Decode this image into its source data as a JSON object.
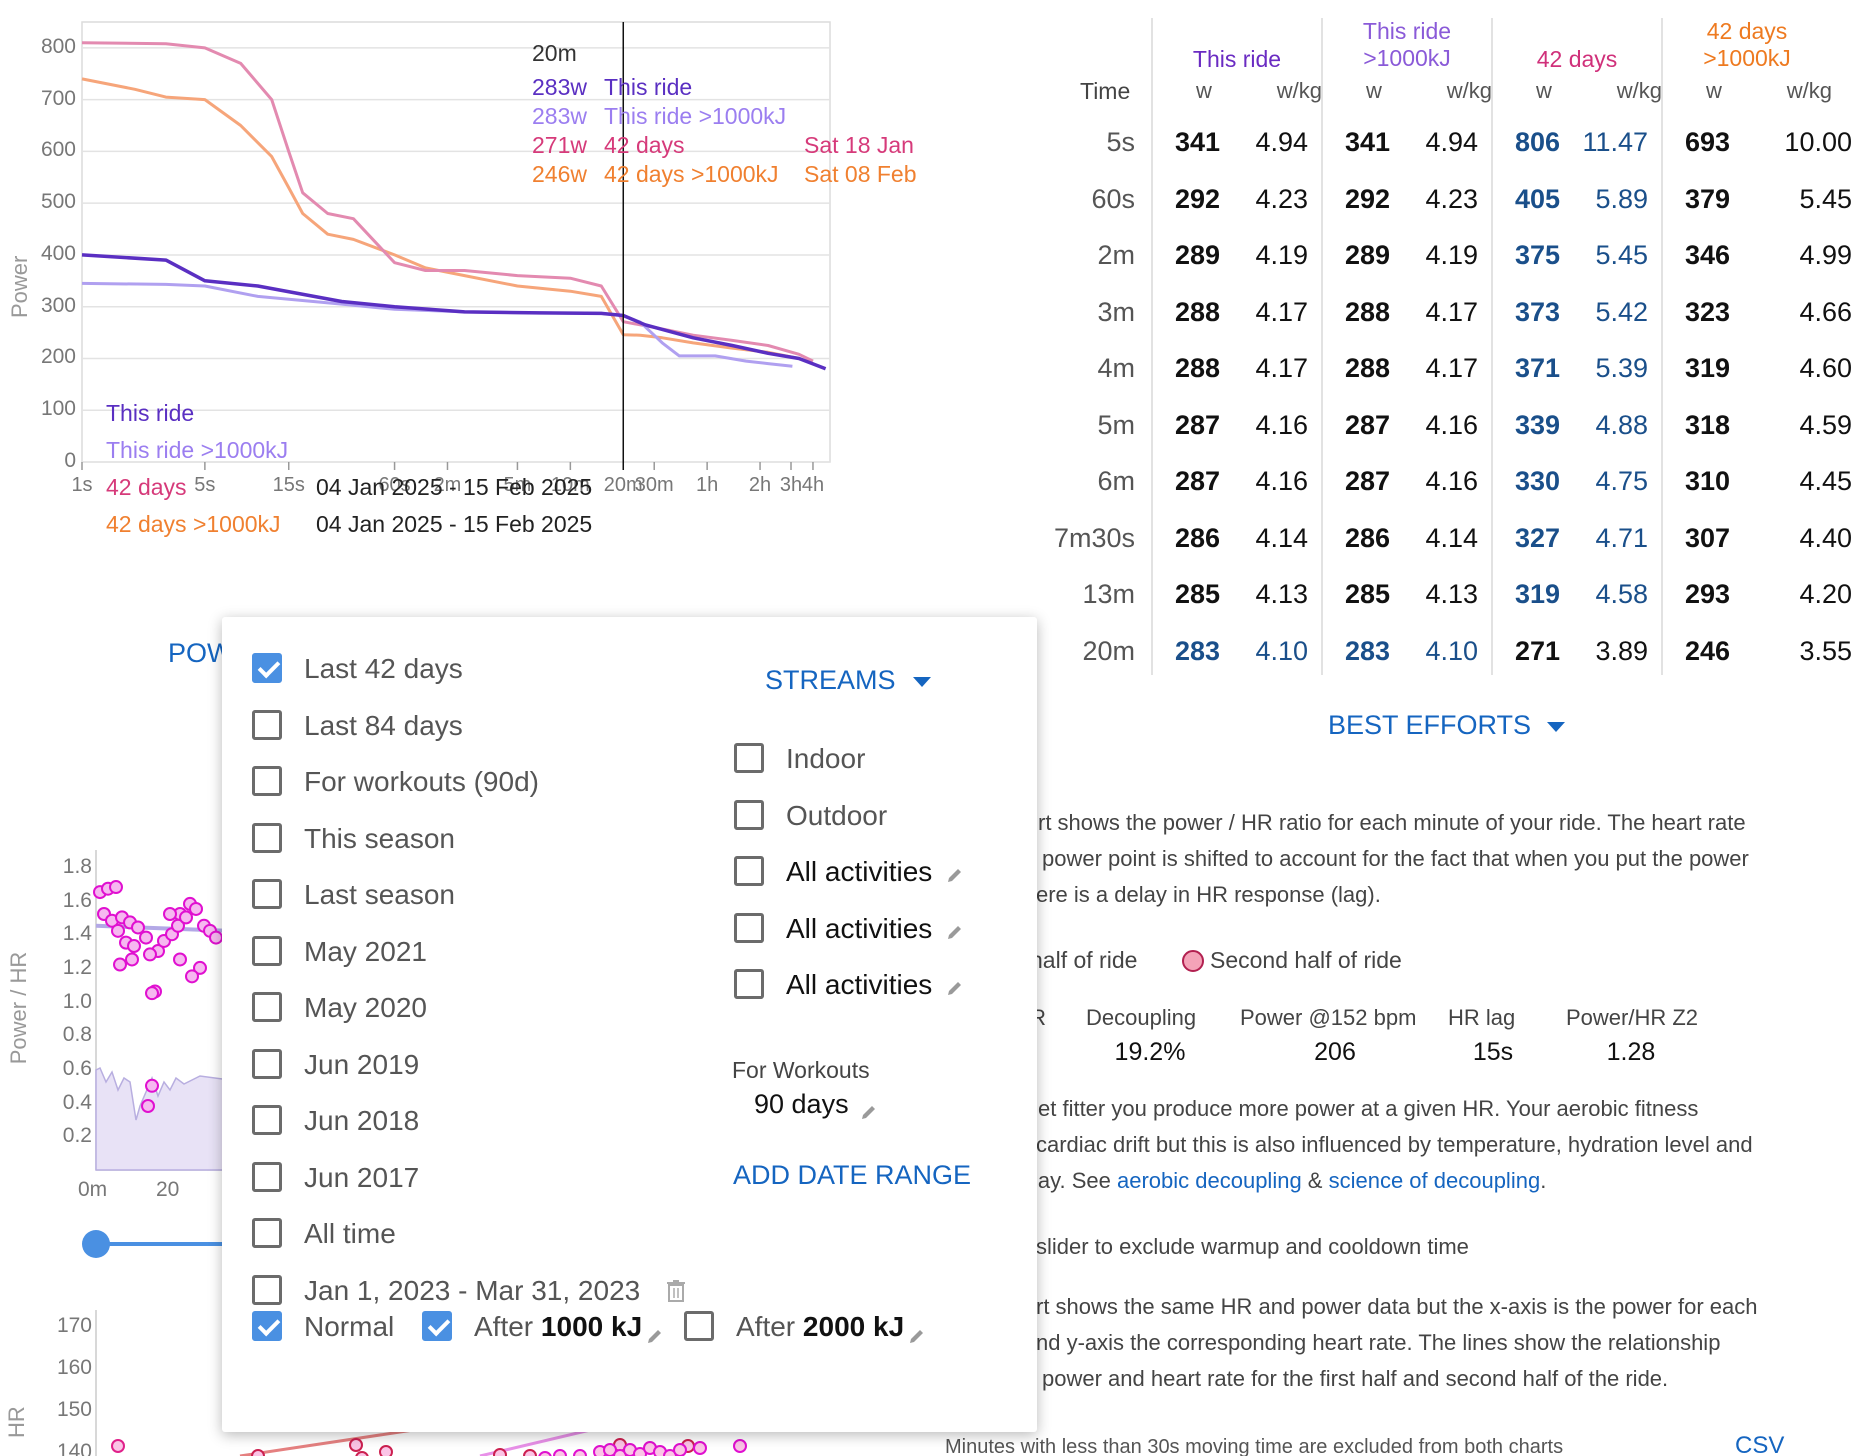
{
  "power_curve": {
    "y_axis_label": "Power",
    "y_ticks": [
      "800",
      "700",
      "600",
      "500",
      "400",
      "300",
      "200",
      "100",
      "0"
    ],
    "x_ticks": [
      "1s",
      "5s",
      "15s",
      "60s",
      "2m",
      "5m",
      "10m",
      "20m",
      "30m",
      "1h",
      "2h",
      "3h",
      "4h"
    ],
    "tooltip": {
      "time": "20m",
      "rows": [
        {
          "watts": "283w",
          "label": "This ride",
          "date": "",
          "color": "#5a2fc2"
        },
        {
          "watts": "283w",
          "label": "This ride >1000kJ",
          "date": "",
          "color": "#9b7ef0"
        },
        {
          "watts": "271w",
          "label": "42 days",
          "date": "Sat 18 Jan",
          "color": "#d63a7a"
        },
        {
          "watts": "246w",
          "label": "42 days >1000kJ",
          "date": "Sat 08 Feb",
          "color": "#f08030"
        }
      ]
    },
    "legend": [
      {
        "label": "This ride",
        "range": "",
        "color": "#5a2fc2"
      },
      {
        "label": "This ride >1000kJ",
        "range": "",
        "color": "#9b7ef0"
      },
      {
        "label": "42 days",
        "range": "04 Jan 2025 - 15 Feb 2025",
        "color": "#d63a7a"
      },
      {
        "label": "42 days >1000kJ",
        "range": "04 Jan 2025 - 15 Feb 2025",
        "color": "#f08030"
      }
    ],
    "series_colors": {
      "this_ride": "#5a2fc2",
      "this_ride_1000": "#b0a0f0",
      "days42": "#e38ab0",
      "days42_1000": "#f6a57a"
    }
  },
  "best_efforts_table": {
    "col_time": "Time",
    "groups": [
      {
        "title": "This ride",
        "color": "#6a2bc2"
      },
      {
        "title": "This ride >1000kJ",
        "color": "#8a5ad8"
      },
      {
        "title": "42 days",
        "color": "#d0307a"
      },
      {
        "title": "42 days >1000kJ",
        "color": "#ee7a20"
      }
    ],
    "unit_w": "w",
    "unit_wkg": "w/kg",
    "rows": [
      {
        "time": "5s",
        "v": [
          "341",
          "4.94",
          "341",
          "4.94",
          "806",
          "11.47",
          "693",
          "10.00"
        ]
      },
      {
        "time": "60s",
        "v": [
          "292",
          "4.23",
          "292",
          "4.23",
          "405",
          "5.89",
          "379",
          "5.45"
        ]
      },
      {
        "time": "2m",
        "v": [
          "289",
          "4.19",
          "289",
          "4.19",
          "375",
          "5.45",
          "346",
          "4.99"
        ]
      },
      {
        "time": "3m",
        "v": [
          "288",
          "4.17",
          "288",
          "4.17",
          "373",
          "5.42",
          "323",
          "4.66"
        ]
      },
      {
        "time": "4m",
        "v": [
          "288",
          "4.17",
          "288",
          "4.17",
          "371",
          "5.39",
          "319",
          "4.60"
        ]
      },
      {
        "time": "5m",
        "v": [
          "287",
          "4.16",
          "287",
          "4.16",
          "339",
          "4.88",
          "318",
          "4.59"
        ]
      },
      {
        "time": "6m",
        "v": [
          "287",
          "4.16",
          "287",
          "4.16",
          "330",
          "4.75",
          "310",
          "4.45"
        ]
      },
      {
        "time": "7m30s",
        "v": [
          "286",
          "4.14",
          "286",
          "4.14",
          "327",
          "4.71",
          "307",
          "4.40"
        ]
      },
      {
        "time": "13m",
        "v": [
          "285",
          "4.13",
          "285",
          "4.13",
          "319",
          "4.58",
          "293",
          "4.20"
        ]
      },
      {
        "time": "20m",
        "v": [
          "283",
          "4.10",
          "283",
          "4.10",
          "271",
          "3.89",
          "246",
          "3.55"
        ]
      }
    ],
    "highlight": {
      "blue_cols_all_rows": [
        4,
        5
      ],
      "blue_last_row_cols": [
        0,
        1,
        2,
        3
      ]
    },
    "dropdown_label": "BEST EFFORTS"
  },
  "power_tab_label": "POW",
  "popup": {
    "periods": [
      {
        "label": "Last 42 days",
        "checked": true
      },
      {
        "label": "Last 84 days",
        "checked": false
      },
      {
        "label": "For workouts (90d)",
        "checked": false
      },
      {
        "label": "This season",
        "checked": false
      },
      {
        "label": "Last season",
        "checked": false
      },
      {
        "label": "May 2021",
        "checked": false
      },
      {
        "label": "May 2020",
        "checked": false
      },
      {
        "label": "Jun 2019",
        "checked": false
      },
      {
        "label": "Jun 2018",
        "checked": false
      },
      {
        "label": "Jun 2017",
        "checked": false
      },
      {
        "label": "All time",
        "checked": false
      },
      {
        "label": "Jan 1, 2023 - Mar 31, 2023",
        "checked": false
      }
    ],
    "streams_label": "STREAMS",
    "filters": [
      {
        "label": "Indoor",
        "checked": false,
        "editable": false
      },
      {
        "label": "Outdoor",
        "checked": false,
        "editable": false
      },
      {
        "label": "All activities",
        "checked": false,
        "editable": true
      },
      {
        "label": "All activities",
        "checked": false,
        "editable": true
      },
      {
        "label": "All activities",
        "checked": false,
        "editable": true
      }
    ],
    "for_workouts_label": "For Workouts",
    "for_workouts_value": "90 days",
    "add_date_range": "ADD DATE RANGE",
    "bottom": [
      {
        "prefix": "Normal",
        "bold": "",
        "suffix": "",
        "checked": true
      },
      {
        "prefix": "After ",
        "bold": "1000",
        "suffix": " kJ",
        "checked": true
      },
      {
        "prefix": "After ",
        "bold": "2000",
        "suffix": " kJ",
        "checked": false
      }
    ]
  },
  "decoupling": {
    "desc1_lines": [
      "rt shows the power / HR ratio for each minute of your ride. The heart rate",
      "power point is shifted to account for the fact that when you put the power",
      "ere is a delay in HR response (lag)."
    ],
    "legend_first": "half of ride",
    "legend_second": "Second half of ride",
    "stats": [
      {
        "label": "IR",
        "value": ""
      },
      {
        "label": "Decoupling",
        "value": "19.2%"
      },
      {
        "label": "Power @152 bpm",
        "value": "206"
      },
      {
        "label": "HR lag",
        "value": "15s"
      },
      {
        "label": "Power/HR Z2",
        "value": "1.28"
      }
    ],
    "desc2_line1": "et fitter you produce more power at a given HR. Your aerobic fitness",
    "desc2_line2": "cardiac drift but this is also influenced by temperature, hydration level and",
    "desc2_line3_prefix": "lay. See ",
    "link1": "aerobic decoupling",
    "amp": " & ",
    "link2": "science of decoupling",
    "dot": ".",
    "slider_text": "slider to exclude warmup and cooldown time",
    "desc3_lines": [
      "rt shows the same HR and power data but the x-axis is the power for each",
      "nd y-axis the corresponding heart rate. The lines show the relationship",
      "power and heart rate for the first half and second half of the ride."
    ],
    "footer_text": "Minutes with less than 30s moving time are excluded from both charts",
    "csv": "CSV"
  },
  "ratio_chart": {
    "y_axis_label": "Power / HR",
    "y_ticks": [
      "1.8",
      "1.6",
      "1.4",
      "1.2",
      "1.0",
      "0.8",
      "0.6",
      "0.4",
      "0.2"
    ],
    "x_ticks": [
      "0m",
      "20"
    ]
  },
  "hr_chart": {
    "y_axis_label": "HR",
    "y_ticks": [
      "170",
      "160",
      "150",
      "140"
    ]
  }
}
